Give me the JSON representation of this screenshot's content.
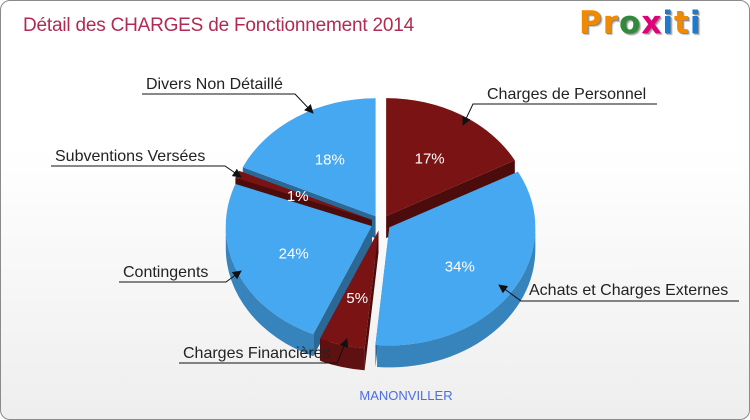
{
  "title": "Détail des CHARGES de Fonctionnement 2014",
  "brand": {
    "letters": [
      "P",
      "r",
      "o",
      "x",
      "i",
      "t",
      "i"
    ],
    "colors": [
      "#f18a00",
      "#f18a00",
      "#2e8b3a",
      "#e0007a",
      "#1c7ad0",
      "#f18a00",
      "#1c7ad0"
    ]
  },
  "chart_data": {
    "type": "pie",
    "title": "Détail des CHARGES de Fonctionnement 2014",
    "subtitle": "MANONVILLER",
    "slices": [
      {
        "label": "Charges de Personnel",
        "pct_label": "17%",
        "value": 17,
        "color": "#7a1414"
      },
      {
        "label": "Achats et Charges Externes",
        "pct_label": "34%",
        "value": 34,
        "color": "#46a8f0"
      },
      {
        "label": "Charges Financières",
        "pct_label": "5%",
        "value": 5,
        "color": "#7a1414"
      },
      {
        "label": "Contingents",
        "pct_label": "24%",
        "value": 24,
        "color": "#46a8f0"
      },
      {
        "label": "Subventions Versées",
        "pct_label": "1%",
        "value": 1,
        "color": "#7a1414"
      },
      {
        "label": "Divers Non Détaillé",
        "pct_label": "18%",
        "value": 18,
        "color": "#46a8f0"
      }
    ]
  }
}
